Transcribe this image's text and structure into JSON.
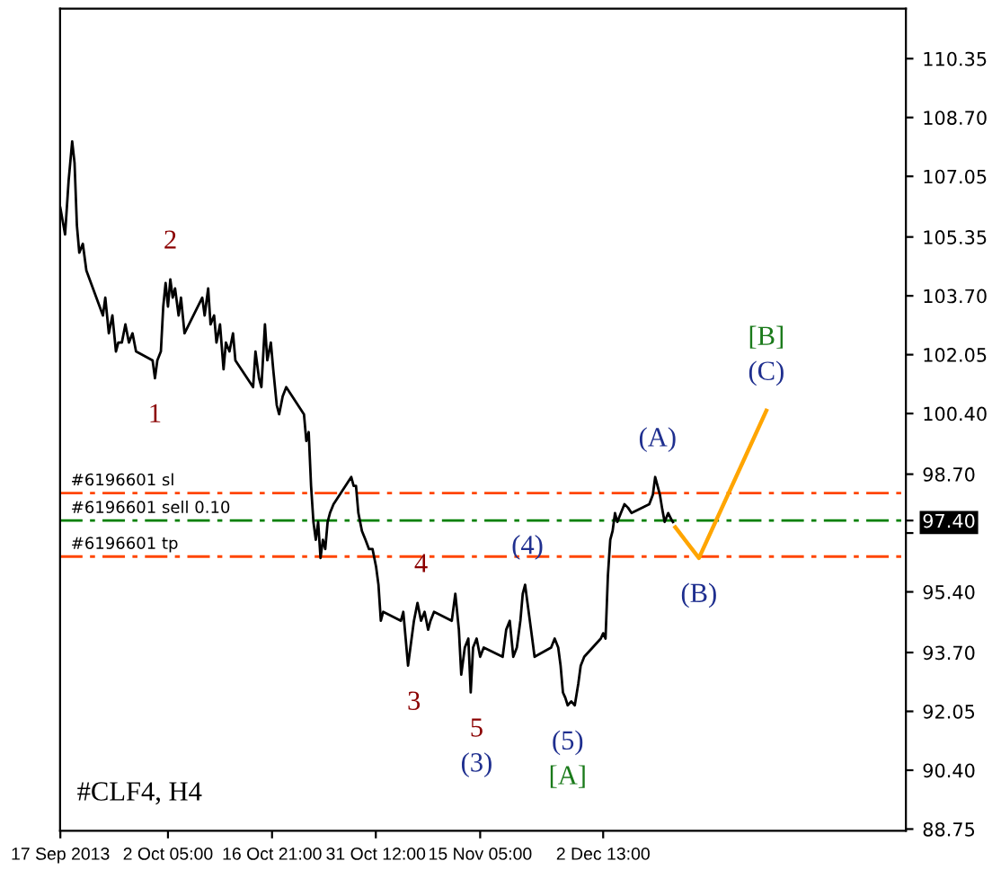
{
  "chart_data": {
    "type": "line",
    "xlim": [
      "2013-09-17T00:00",
      "2014-01-14T05:00"
    ],
    "ylim": [
      88.7,
      111.75
    ],
    "xticks": [
      {
        "value": "2013-09-17T01:00",
        "label": "17 Sep 2013"
      },
      {
        "value": "2013-10-02T05:00",
        "label": "2 Oct 05:00"
      },
      {
        "value": "2013-10-16T21:00",
        "label": "16 Oct 21:00"
      },
      {
        "value": "2013-10-31T12:00",
        "label": "31 Oct 12:00"
      },
      {
        "value": "2013-11-15T05:00",
        "label": "15 Nov 05:00"
      },
      {
        "value": "2013-12-02T13:00",
        "label": "2 Dec 13:00"
      }
    ],
    "yticks": [
      {
        "value": 88.75,
        "label": "88.75"
      },
      {
        "value": 90.4,
        "label": "90.40"
      },
      {
        "value": 92.05,
        "label": "92.05"
      },
      {
        "value": 93.7,
        "label": "93.70"
      },
      {
        "value": 95.4,
        "label": "95.40"
      },
      {
        "value": 97.05,
        "label": null
      },
      {
        "value": 97.4,
        "label": "97.40"
      },
      {
        "value": 98.7,
        "label": "98.70"
      },
      {
        "value": 100.4,
        "label": "100.40"
      },
      {
        "value": 102.05,
        "label": "102.05"
      },
      {
        "value": 103.7,
        "label": "103.70"
      },
      {
        "value": 105.35,
        "label": "105.35"
      },
      {
        "value": 107.05,
        "label": "107.05"
      },
      {
        "value": 108.7,
        "label": "108.70"
      },
      {
        "value": 110.35,
        "label": "110.35"
      }
    ],
    "series": [
      {
        "color": "#000000",
        "x": [
          "2013-09-17T01:00",
          "2013-09-17T17:00",
          "2013-09-18T05:00",
          "2013-09-18T17:00",
          "2013-09-19T01:00",
          "2013-09-19T09:00",
          "2013-09-19T17:00",
          "2013-09-20T05:00",
          "2013-09-20T17:00",
          "2013-09-23T01:00",
          "2013-09-23T09:00",
          "2013-09-23T21:00",
          "2013-09-24T09:00",
          "2013-09-24T21:00",
          "2013-09-25T05:00",
          "2013-09-25T17:00",
          "2013-09-26T05:00",
          "2013-09-26T17:00",
          "2013-09-27T05:00",
          "2013-09-27T17:00",
          "2013-09-30T01:00",
          "2013-09-30T09:00",
          "2013-09-30T17:00",
          "2013-10-01T05:00",
          "2013-10-01T13:00",
          "2013-10-01T21:00",
          "2013-10-02T05:00",
          "2013-10-02T13:00",
          "2013-10-02T21:00",
          "2013-10-03T05:00",
          "2013-10-03T17:00",
          "2013-10-04T01:00",
          "2013-10-04T13:00",
          "2013-10-07T01:00",
          "2013-10-07T09:00",
          "2013-10-07T21:00",
          "2013-10-08T05:00",
          "2013-10-08T17:00",
          "2013-10-09T01:00",
          "2013-10-09T13:00",
          "2013-10-10T01:00",
          "2013-10-10T09:00",
          "2013-10-10T21:00",
          "2013-10-11T09:00",
          "2013-10-11T17:00",
          "2013-10-14T05:00",
          "2013-10-14T13:00",
          "2013-10-15T01:00",
          "2013-10-15T09:00",
          "2013-10-15T21:00",
          "2013-10-16T05:00",
          "2013-10-16T17:00",
          "2013-10-17T01:00",
          "2013-10-17T13:00",
          "2013-10-17T21:00",
          "2013-10-18T09:00",
          "2013-10-18T21:00",
          "2013-10-21T09:00",
          "2013-10-21T17:00",
          "2013-10-22T01:00",
          "2013-10-22T09:00",
          "2013-10-22T17:00",
          "2013-10-23T01:00",
          "2013-10-23T09:00",
          "2013-10-23T17:00",
          "2013-10-24T01:00",
          "2013-10-24T09:00",
          "2013-10-24T17:00",
          "2013-10-25T01:00",
          "2013-10-25T13:00",
          "2013-10-28T01:00",
          "2013-10-28T09:00",
          "2013-10-28T17:00",
          "2013-10-29T01:00",
          "2013-10-29T13:00",
          "2013-10-30T01:00",
          "2013-10-30T13:00",
          "2013-10-31T01:00",
          "2013-10-31T13:00",
          "2013-10-31T21:00",
          "2013-11-01T05:00",
          "2013-11-01T13:00",
          "2013-11-04T01:00",
          "2013-11-04T09:00",
          "2013-11-04T17:00",
          "2013-11-05T01:00",
          "2013-11-05T09:00",
          "2013-11-05T21:00",
          "2013-11-06T09:00",
          "2013-11-06T21:00",
          "2013-11-07T09:00",
          "2013-11-07T21:00",
          "2013-11-08T05:00",
          "2013-11-08T17:00",
          "2013-11-11T05:00",
          "2013-11-11T17:00",
          "2013-11-12T05:00",
          "2013-11-12T13:00",
          "2013-11-13T01:00",
          "2013-11-13T13:00",
          "2013-11-13T21:00",
          "2013-11-14T05:00",
          "2013-11-14T17:00",
          "2013-11-15T05:00",
          "2013-11-15T17:00",
          "2013-11-18T09:00",
          "2013-11-18T21:00",
          "2013-11-19T09:00",
          "2013-11-19T21:00",
          "2013-11-20T09:00",
          "2013-11-20T21:00",
          "2013-11-21T05:00",
          "2013-11-21T13:00",
          "2013-11-21T21:00",
          "2013-11-22T05:00",
          "2013-11-22T13:00",
          "2013-11-22T21:00",
          "2013-11-25T05:00",
          "2013-11-25T17:00",
          "2013-11-26T05:00",
          "2013-11-26T13:00",
          "2013-11-26T21:00",
          "2013-11-27T05:00",
          "2013-11-27T13:00",
          "2013-11-28T01:00",
          "2013-11-28T13:00",
          "2013-11-29T01:00",
          "2013-11-29T09:00",
          "2013-11-29T21:00",
          "2013-12-02T05:00",
          "2013-12-02T13:00",
          "2013-12-02T21:00",
          "2013-12-03T05:00",
          "2013-12-03T13:00",
          "2013-12-03T21:00",
          "2013-12-04T05:00",
          "2013-12-04T13:00",
          "2013-12-05T01:00",
          "2013-12-05T13:00",
          "2013-12-06T01:00",
          "2013-12-06T13:00",
          "2013-12-09T01:00",
          "2013-12-09T13:00",
          "2013-12-09T21:00",
          "2013-12-10T05:00",
          "2013-12-10T13:00",
          "2013-12-10T21:00",
          "2013-12-11T05:00",
          "2013-12-11T17:00",
          "2013-12-12T05:00",
          "2013-12-12T09:00"
        ],
        "values": [
          106.17,
          105.42,
          106.93,
          108.03,
          107.43,
          105.67,
          104.91,
          105.16,
          104.41,
          103.15,
          103.65,
          102.65,
          103.15,
          102.14,
          102.39,
          102.39,
          102.9,
          102.39,
          102.65,
          102.14,
          101.89,
          101.39,
          101.89,
          102.14,
          103.4,
          104.06,
          103.4,
          104.16,
          103.65,
          103.91,
          103.15,
          103.65,
          102.65,
          103.65,
          103.15,
          103.91,
          102.9,
          103.15,
          102.39,
          102.9,
          101.64,
          102.39,
          102.14,
          102.65,
          101.89,
          101.14,
          102.14,
          101.39,
          101.14,
          102.9,
          101.89,
          102.39,
          101.64,
          100.63,
          100.38,
          100.88,
          101.14,
          100.38,
          99.63,
          99.88,
          98.37,
          97.36,
          96.86,
          97.36,
          96.35,
          96.86,
          96.6,
          97.36,
          97.61,
          97.86,
          98.62,
          98.37,
          98.37,
          97.61,
          97.11,
          96.86,
          96.6,
          96.6,
          96.1,
          95.6,
          94.59,
          94.84,
          94.59,
          94.84,
          94.09,
          93.33,
          93.84,
          94.59,
          95.09,
          94.59,
          94.84,
          94.34,
          94.59,
          94.84,
          94.59,
          95.35,
          94.34,
          93.08,
          93.84,
          94.09,
          92.58,
          93.84,
          94.09,
          93.58,
          93.84,
          93.58,
          94.34,
          94.59,
          93.58,
          93.84,
          94.59,
          95.35,
          95.6,
          95.09,
          94.59,
          94.09,
          93.58,
          93.84,
          94.09,
          93.84,
          93.33,
          92.58,
          92.43,
          92.22,
          92.33,
          92.22,
          92.83,
          93.33,
          93.58,
          94.09,
          94.24,
          94.09,
          95.85,
          96.86,
          97.11,
          97.61,
          97.36,
          97.61,
          97.86,
          97.76,
          97.61,
          97.86,
          98.12,
          98.62,
          98.37,
          98.12,
          97.71,
          97.36,
          97.61,
          97.41,
          97.36
        ]
      },
      {
        "color": "#ffa500",
        "x": [
          "2013-12-12T17:00",
          "2013-12-16T01:00",
          "2013-12-25T13:00"
        ],
        "values": [
          97.21,
          96.35,
          100.48
        ]
      }
    ],
    "ref_lines": [
      {
        "axis": "y",
        "value": 98.17,
        "label": "#6196601 sl",
        "color": "#ff4500",
        "line_style": "dashed"
      },
      {
        "axis": "y",
        "value": 97.4,
        "label": "#6196601 sell 0.10",
        "color": "#008000",
        "line_style": "dashed"
      },
      {
        "axis": "y",
        "value": 96.39,
        "label": "#6196601 tp",
        "color": "#ff4500",
        "line_style": "dashed"
      }
    ],
    "annotations": [
      {
        "text": "1",
        "x": "2013-09-30T09:00",
        "y": 101.39
      },
      {
        "text": "2",
        "x": "2013-10-02T13:00",
        "y": 104.16
      },
      {
        "text": "3",
        "x": "2013-11-05T21:00",
        "y": 93.33
      },
      {
        "text": "4",
        "x": "2013-11-06T21:00",
        "y": 95.09
      },
      {
        "text": "5",
        "x": "2013-11-14T17:00",
        "y": 92.58
      },
      {
        "text": "(3)",
        "x": "2013-11-14T17:00",
        "y": 92.58
      },
      {
        "text": "(4)",
        "x": "2013-11-21T21:00",
        "y": 95.6
      },
      {
        "text": "(5)",
        "x": "2013-11-27T13:00",
        "y": 92.22
      },
      {
        "text": "[A]",
        "x": "2013-11-27T13:00",
        "y": 92.22
      },
      {
        "text": "(A)",
        "x": "2013-12-10T05:00",
        "y": 98.62
      },
      {
        "text": "(B)",
        "x": "2013-12-16T01:00",
        "y": 96.35
      },
      {
        "text": "(C)",
        "x": "2013-12-25T13:00",
        "y": 100.48
      },
      {
        "text": "[B]",
        "x": "2013-12-25T13:00",
        "y": 100.48
      },
      "#CLF4, H4"
    ],
    "grid": false,
    "legend": false,
    "marker": "none",
    "line_style": "solid"
  }
}
